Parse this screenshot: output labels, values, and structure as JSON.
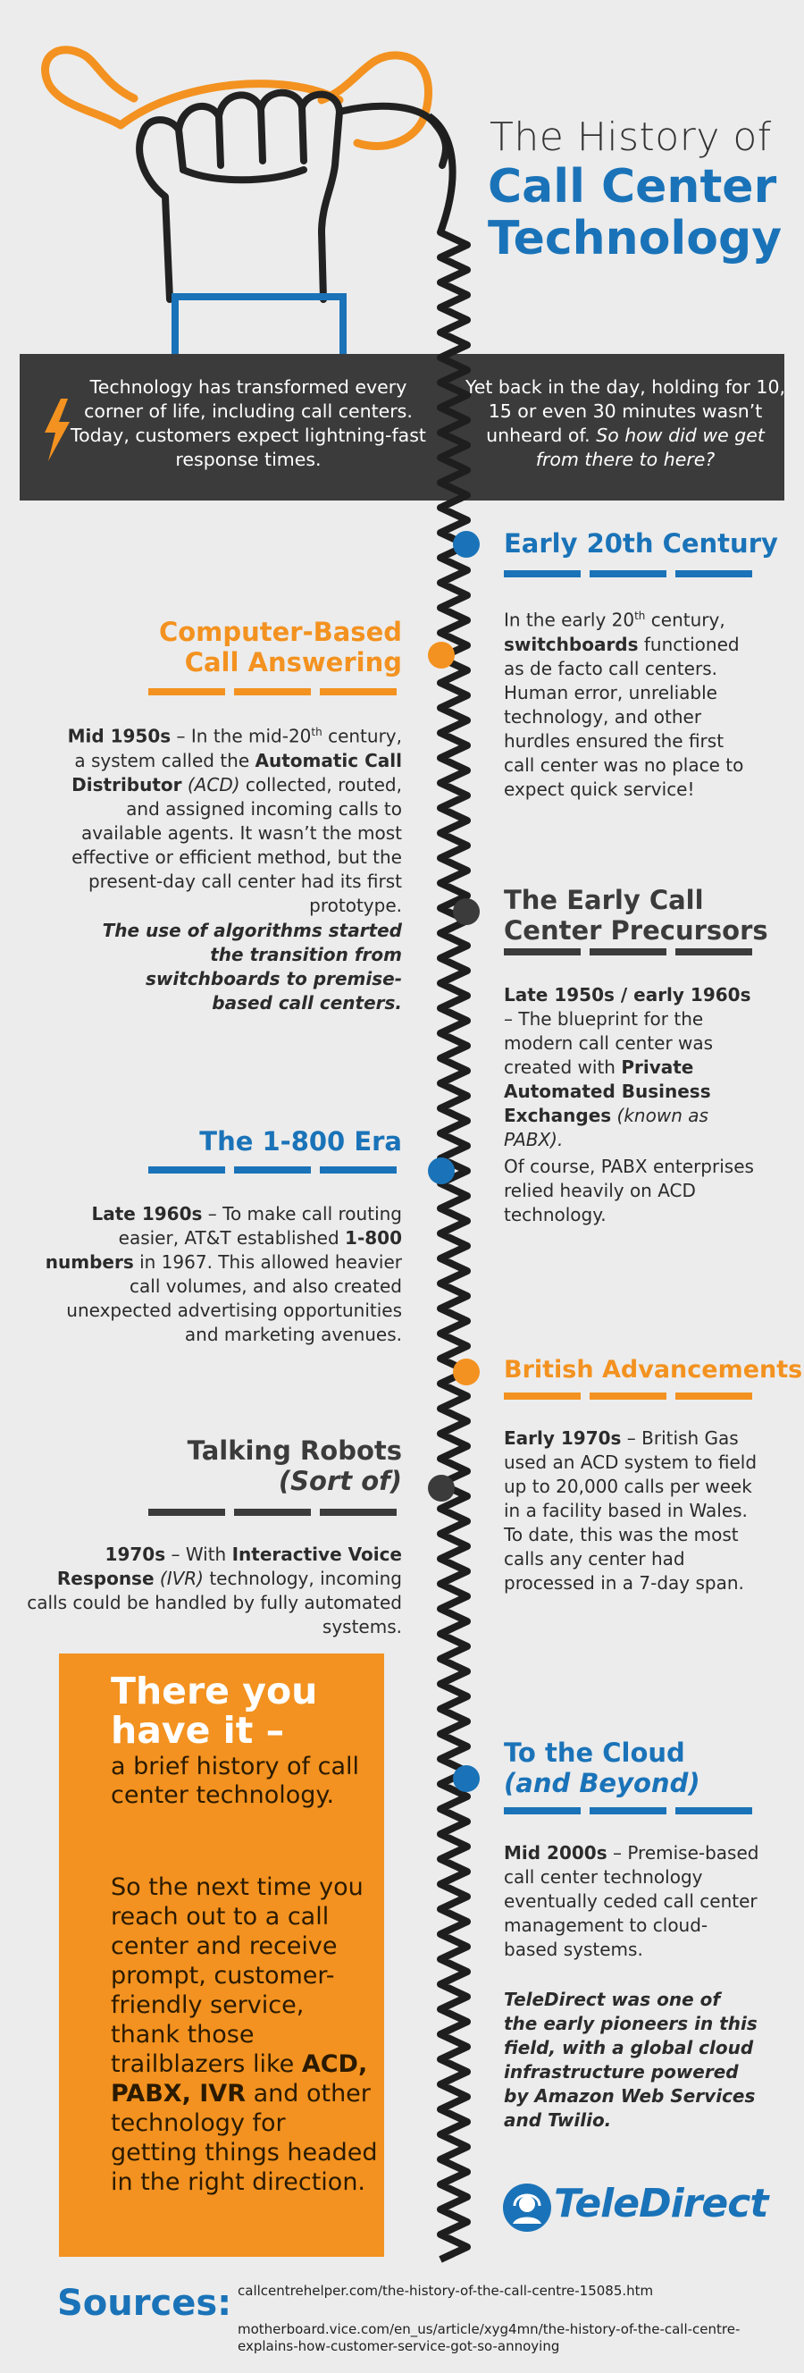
{
  "title": {
    "line1": "The History of",
    "line2": "Call Center",
    "line3": "Technology"
  },
  "intro": {
    "left": "Technology has transformed every corner of life, including call centers. Today, customers expect lightning-fast response times.",
    "right_plain": "Yet back in the day, holding for 10, 15 or even 30 minutes wasn’t unheard of.",
    "right_italic": "So how did we get from there to here?"
  },
  "sections": {
    "early20": {
      "heading": "Early 20th Century",
      "body_1": "In the early 20",
      "sup": "th",
      "body_2": " century, ",
      "bold": "switchboards",
      "body_3": " functioned as de facto call centers. Human error, unreliable technology, and other hurdles ensured the first call center was no place to expect quick service!"
    },
    "computer": {
      "heading_1": "Computer-Based",
      "heading_2": "Call Answering",
      "lead": "Mid 1950s",
      "body_1": " – In the mid-20",
      "sup": "th",
      "body_2": " century, a system called the ",
      "bold": "Automatic Call Distributor",
      "italic": " (ACD)",
      "body_3": " collected, routed, and assigned incoming calls to available agents. It wasn’t the most effective or efficient method, but the present-day call center had its first prototype.",
      "note": "The use of algorithms started the transition from switchboards to premise-based call centers."
    },
    "precursors": {
      "heading_1": "The Early Call",
      "heading_2": "Center Precursors",
      "lead": "Late 1950s / early 1960s",
      "body_1": " – The blueprint for the modern call center was created with ",
      "bold": "Private Automated Business Exchanges",
      "italic": " (known as PABX).",
      "body_2": "Of course, PABX enterprises relied heavily on ACD technology."
    },
    "era1800": {
      "heading": "The 1-800 Era",
      "lead": "Late 1960s",
      "body_1": " – To make call routing easier, AT&T established ",
      "bold": "1-800 numbers",
      "body_2": " in 1967. This allowed heavier call volumes, and also created unexpected advertising opportunities and marketing avenues."
    },
    "british": {
      "heading": "British Advancements",
      "lead": "Early 1970s",
      "body": " – British Gas used an ACD system to field up to 20,000 calls per week in a facility based in Wales. To date, this was the most calls any center had processed in a 7-day span."
    },
    "robots": {
      "heading_1": "Talking Robots",
      "heading_2": "(Sort of)",
      "lead": "1970s",
      "body_1": " – With ",
      "bold": "Interactive Voice Response",
      "italic": " (IVR)",
      "body_2": " technology, incoming calls could be handled by fully automated systems."
    },
    "cloud": {
      "heading_1": "To the Cloud",
      "heading_2": "(and Beyond)",
      "lead": "Mid 2000s",
      "body": " – Premise-based call center technology eventually ceded call center management to cloud-based systems.",
      "note": "TeleDirect was one of the early pioneers in this field, with a global cloud infrastructure powered by Amazon Web Services and Twilio."
    }
  },
  "final": {
    "big": "There you have it –",
    "body": "a brief history of call center technology.",
    "body2_1": "So the next time you reach out to a call center and receive prompt, customer-friendly service, thank those trailblazers like ",
    "body2_bold": "ACD, PABX, IVR",
    "body2_2": " and other technology for getting things headed in the right direction."
  },
  "logo": {
    "text": "TeleDirect"
  },
  "sources": {
    "label": "Sources:",
    "items": [
      "callcentrehelper.com/the-history-of-the-call-centre-15085.htm",
      "motherboard.vice.com/en_us/article/xyg4mn/the-history-of-the-call-centre-explains-how-customer-service-got-so-annoying"
    ]
  },
  "colors": {
    "orange": "#f39220",
    "blue": "#1a73b8",
    "dark": "#3b3b3b",
    "background": "#ececec"
  },
  "icons": [
    "phone-handset-icon",
    "fist-icon",
    "lightning-bolt-icon",
    "teledirect-headset-icon"
  ]
}
